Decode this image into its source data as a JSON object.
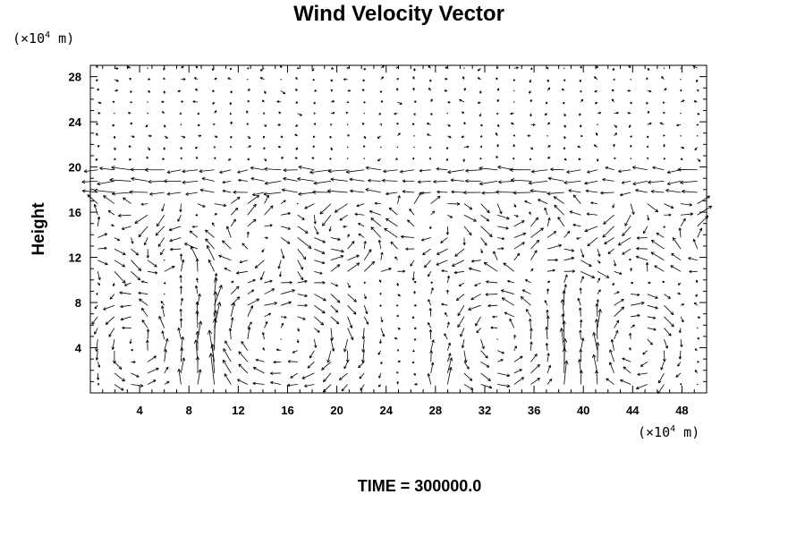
{
  "chart_data": {
    "type": "vector-field",
    "title": "Wind Velocity Vector",
    "ylabel": "Height",
    "x_unit": {
      "prefix": "(×10",
      "exponent": "4",
      "suffix": " m)"
    },
    "y_unit": {
      "prefix": "(×10",
      "exponent": "4",
      "suffix": " m)"
    },
    "xlim": [
      0,
      50
    ],
    "ylim": [
      0,
      29
    ],
    "x_ticks": [
      4,
      8,
      12,
      16,
      20,
      24,
      28,
      32,
      36,
      40,
      44,
      48
    ],
    "y_ticks": [
      4,
      8,
      12,
      16,
      20,
      24,
      28
    ],
    "grid": {
      "nx": 37,
      "ny": 29,
      "x_start": 0,
      "x_step": 1.3514,
      "y_start": 0.75,
      "y_step": 1.0
    },
    "cells": [
      {
        "x_center": 3.5,
        "x_halfwidth": 3.2,
        "y_top": 9.5
      },
      {
        "x_center": 16.0,
        "x_halfwidth": 7.5,
        "y_top": 10.5
      },
      {
        "x_center": 33.0,
        "x_halfwidth": 4.5,
        "y_top": 10.5
      },
      {
        "x_center": 44.5,
        "x_halfwidth": 3.5,
        "y_top": 9.5
      }
    ],
    "updrafts": [
      8.0,
      10.0,
      28.5,
      38.5,
      40.5
    ],
    "upper_jet": {
      "y_range": [
        17,
        20
      ],
      "direction": "westward"
    },
    "color": "#000000"
  },
  "footer": "TIME = 300000.0"
}
